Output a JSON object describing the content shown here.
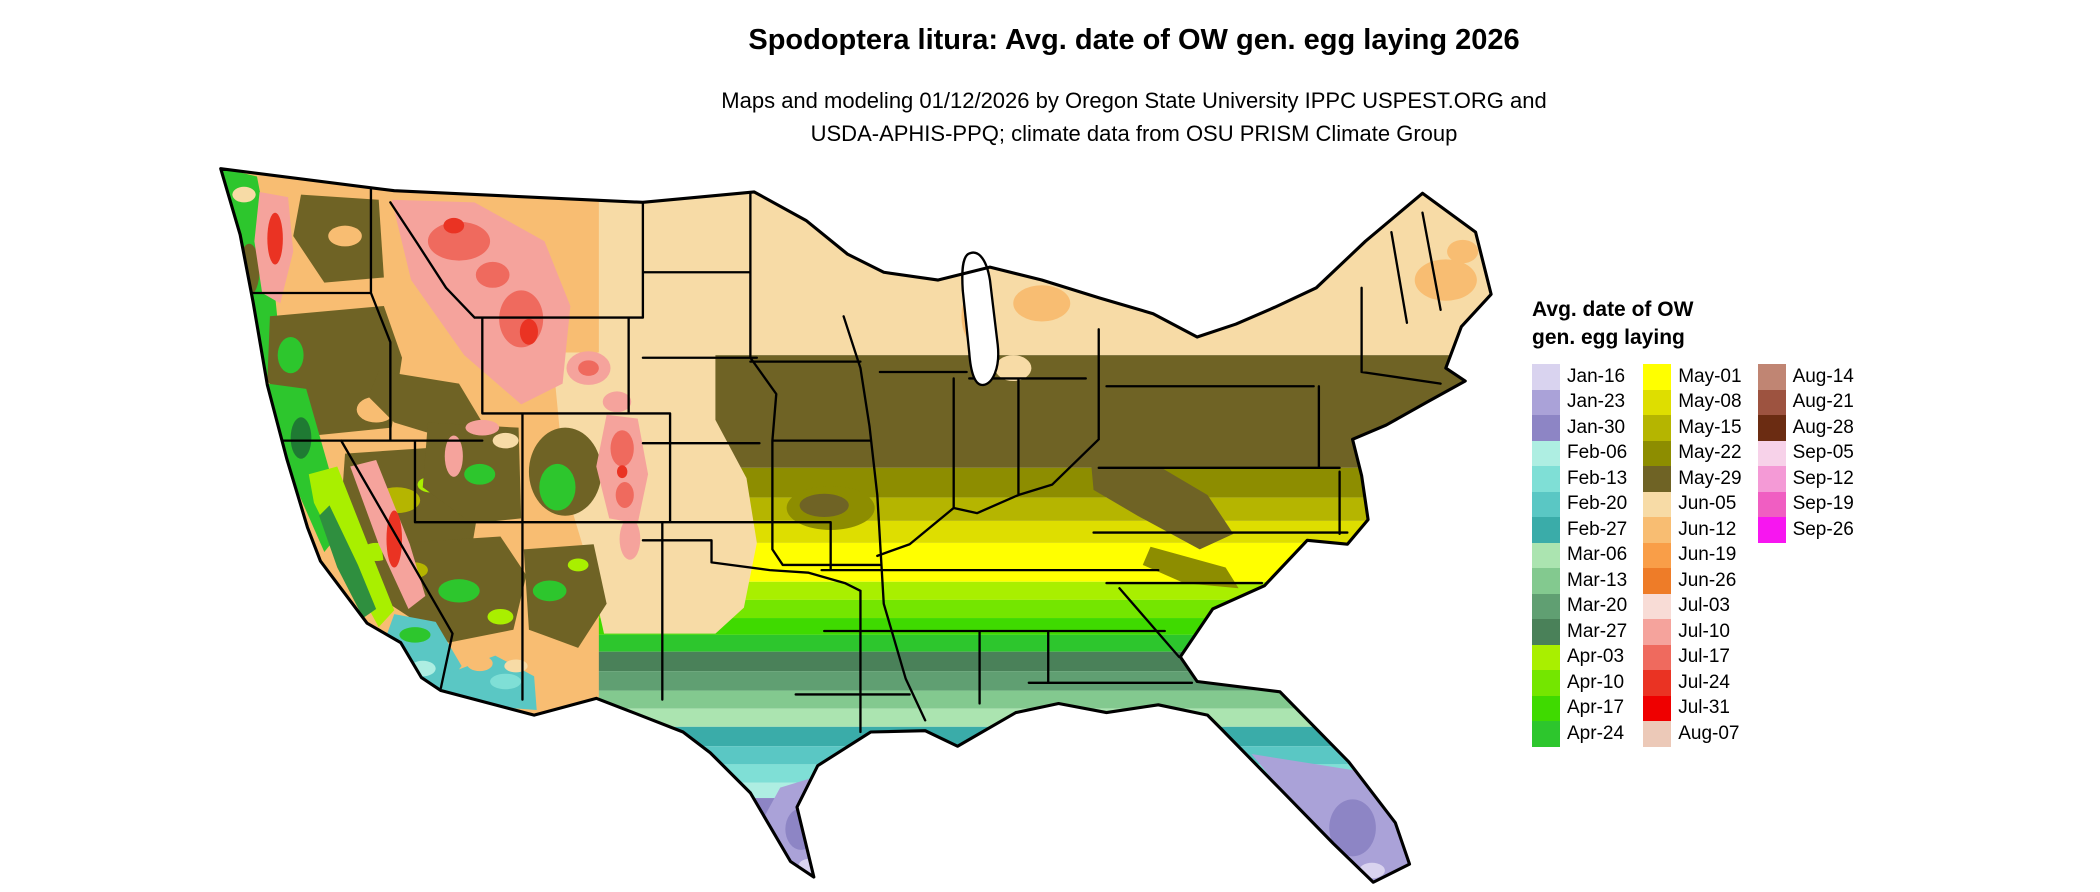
{
  "title": "Spodoptera litura: Avg. date of OW gen. egg laying 2026",
  "subtitle": [
    "Maps and modeling 01/12/2026 by Oregon State University IPPC USPEST.ORG and",
    "USDA-APHIS-PPQ; climate data from OSU PRISM Climate Group"
  ],
  "legend": {
    "title": [
      "Avg. date of OW",
      "gen. egg laying"
    ],
    "columns": [
      {
        "entries": [
          {
            "label": "Jan-16",
            "color": "#d9d3ef"
          },
          {
            "label": "Jan-23",
            "color": "#aaa2d8"
          },
          {
            "label": "Jan-30",
            "color": "#8d85c5"
          },
          {
            "label": "Feb-06",
            "color": "#aeeee2"
          },
          {
            "label": "Feb-13",
            "color": "#7fdfd6"
          },
          {
            "label": "Feb-20",
            "color": "#5ac7c4"
          },
          {
            "label": "Feb-27",
            "color": "#3aaca9"
          },
          {
            "label": "Mar-06",
            "color": "#abe4b0"
          },
          {
            "label": "Mar-13",
            "color": "#83c98f"
          },
          {
            "label": "Mar-20",
            "color": "#609f72"
          },
          {
            "label": "Mar-27",
            "color": "#4a8159"
          },
          {
            "label": "Apr-03",
            "color": "#a9ef00"
          },
          {
            "label": "Apr-10",
            "color": "#74e600"
          },
          {
            "label": "Apr-17",
            "color": "#3fda00"
          },
          {
            "label": "Apr-24",
            "color": "#2dc62d"
          }
        ]
      },
      {
        "entries": [
          {
            "label": "May-01",
            "color": "#ffff00"
          },
          {
            "label": "May-08",
            "color": "#dede00"
          },
          {
            "label": "May-15",
            "color": "#b5b500"
          },
          {
            "label": "May-22",
            "color": "#8d8d00"
          },
          {
            "label": "May-29",
            "color": "#6f6325"
          },
          {
            "label": "Jun-05",
            "color": "#f7dba6"
          },
          {
            "label": "Jun-12",
            "color": "#f8bd72"
          },
          {
            "label": "Jun-19",
            "color": "#f99e48"
          },
          {
            "label": "Jun-26",
            "color": "#ee7c28"
          },
          {
            "label": "Jul-03",
            "color": "#f8dcd6"
          },
          {
            "label": "Jul-10",
            "color": "#f5a39c"
          },
          {
            "label": "Jul-17",
            "color": "#ef6a5e"
          },
          {
            "label": "Jul-24",
            "color": "#ea3323"
          },
          {
            "label": "Jul-31",
            "color": "#ef0000"
          },
          {
            "label": "Aug-07",
            "color": "#ecc9b8"
          }
        ]
      },
      {
        "entries": [
          {
            "label": "Aug-14",
            "color": "#c08573"
          },
          {
            "label": "Aug-21",
            "color": "#9d5340"
          },
          {
            "label": "Aug-28",
            "color": "#6b2c12"
          },
          {
            "label": "Sep-05",
            "color": "#f7d2e9"
          },
          {
            "label": "Sep-12",
            "color": "#f49ad6"
          },
          {
            "label": "Sep-19",
            "color": "#f05ec2"
          },
          {
            "label": "Sep-26",
            "color": "#f716f0"
          }
        ]
      }
    ]
  }
}
